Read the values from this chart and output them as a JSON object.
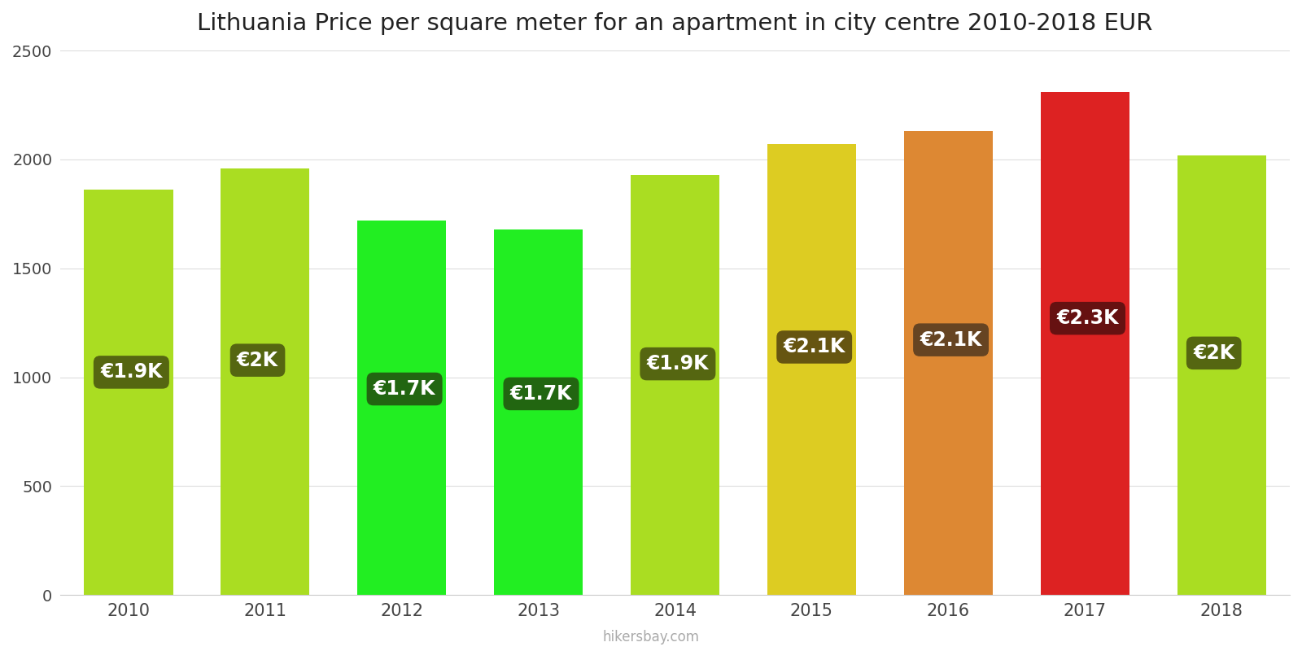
{
  "years": [
    "2010",
    "2011",
    "2012",
    "2013",
    "2014",
    "2015",
    "2016",
    "2017",
    "2018"
  ],
  "values": [
    1860,
    1960,
    1720,
    1680,
    1930,
    2070,
    2130,
    2310,
    2020
  ],
  "labels": [
    "€1.9K",
    "€2K",
    "€1.7K",
    "€1.7K",
    "€1.9K",
    "€2.1K",
    "€2.1K",
    "€2.3K",
    "€2K"
  ],
  "bar_colors": [
    "#aadd22",
    "#aadd22",
    "#22ee22",
    "#22ee22",
    "#aadd22",
    "#ddcc22",
    "#dd8833",
    "#dd2222",
    "#aadd22"
  ],
  "label_bg_colors": [
    "#556611",
    "#556611",
    "#226611",
    "#226611",
    "#556611",
    "#665511",
    "#664422",
    "#661111",
    "#556611"
  ],
  "title": "Lithuania Price per square meter for an apartment in city centre 2010-2018 EUR",
  "ylim": [
    0,
    2500
  ],
  "yticks": [
    0,
    500,
    1000,
    1500,
    2000,
    2500
  ],
  "watermark": "hikersbay.com",
  "bg_color": "#ffffff",
  "label_font_size": 17,
  "title_font_size": 21
}
